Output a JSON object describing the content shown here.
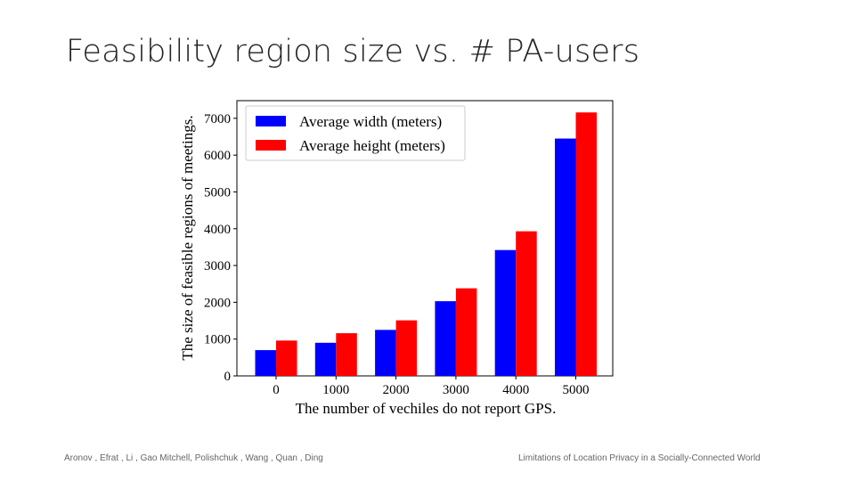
{
  "slide": {
    "title": "Feasibility region size vs. # PA-users",
    "footer_left": "Aronov , Efrat , Li , Gao Mitchell, Polishchuk , Wang , Quan , Ding",
    "footer_right": "Limitations of Location Privacy in a Socially-Connected World"
  },
  "colors": {
    "width_series": "#0000ff",
    "height_series": "#ff0000"
  },
  "chart_data": {
    "type": "bar",
    "title": "",
    "xlabel": "The number of vechiles do not report GPS.",
    "ylabel": "The size of feasible regions of meetings.",
    "categories": [
      "0",
      "1000",
      "2000",
      "3000",
      "4000",
      "5000"
    ],
    "series": [
      {
        "name": "Average width (meters)",
        "values": [
          700,
          900,
          1250,
          2030,
          3420,
          6450
        ]
      },
      {
        "name": "Average height (meters)",
        "values": [
          960,
          1160,
          1510,
          2380,
          3930,
          7160
        ]
      }
    ],
    "ylim": [
      0,
      7480
    ],
    "yticks": [
      0,
      1000,
      2000,
      3000,
      4000,
      5000,
      6000,
      7000
    ],
    "legend": "top-left",
    "grid": false
  }
}
